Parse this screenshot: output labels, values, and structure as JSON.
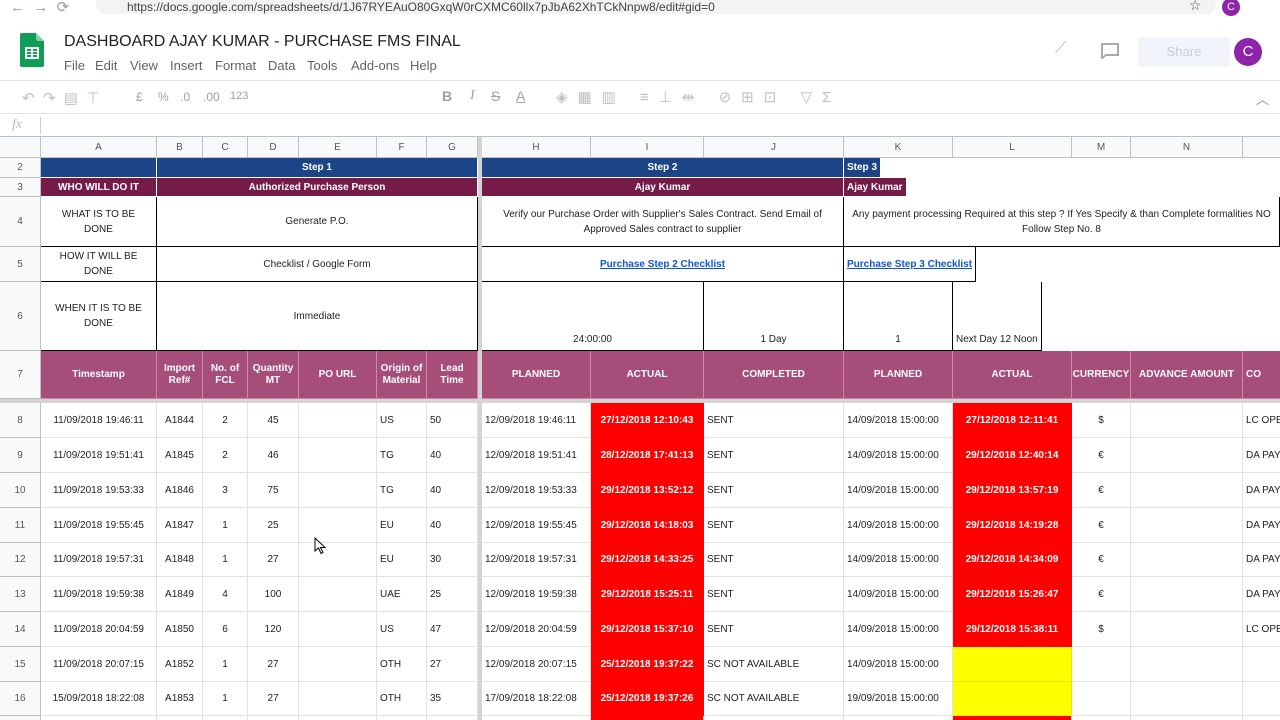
{
  "browser": {
    "url": "https://docs.google.com/spreadsheets/d/1J67RYEAuO80GxqW0rCXMC60llx7pJbA62XhTCkNnpw8/edit#gid=0",
    "avatar": "C"
  },
  "app": {
    "title": "DASHBOARD AJAY KUMAR - PURCHASE FMS FINAL",
    "menu": [
      "File",
      "Edit",
      "View",
      "Insert",
      "Format",
      "Data",
      "Tools",
      "Add-ons",
      "Help"
    ],
    "share": "Share",
    "avatar": "C",
    "toolbar": [
      "£",
      "%",
      ".0",
      ".00",
      "123",
      "B",
      "I",
      "S",
      "A"
    ],
    "fx": "fx"
  },
  "sheet": {
    "column_letters": [
      "A",
      "B",
      "C",
      "D",
      "E",
      "F",
      "G",
      "H",
      "I",
      "J",
      "K",
      "L",
      "M",
      "N"
    ],
    "row_numbers": [
      "2",
      "3",
      "4",
      "5",
      "6",
      "7",
      "8",
      "9",
      "10",
      "11",
      "12",
      "13",
      "14",
      "15",
      "16"
    ],
    "step_row": [
      "Step 1",
      "Step 2",
      "Step 3"
    ],
    "who_row": [
      "WHO WILL DO IT",
      "Authorized Purchase Person",
      "Ajay Kumar",
      "Ajay Kumar"
    ],
    "what_row": [
      "WHAT IS TO BE DONE",
      "Generate P.O.",
      "Verify our Purchase Order with Supplier's Sales Contract. Send Email of Approved Sales contract to supplier",
      "Any payment processing Required at this step ? If Yes Specify & than Complete formalities NO Follow Step No. 8"
    ],
    "how_row": [
      "HOW IT WILL BE DONE",
      "Checklist / Google Form",
      "Purchase Step 2 Checklist",
      "Purchase Step 3 Checklist"
    ],
    "when_row": [
      "WHEN IT IS TO BE DONE",
      "Immediate",
      "24:00:00",
      "1 Day",
      "1",
      "Next Day 12 Noon"
    ],
    "field_row": [
      "Timestamp",
      "Import Ref#",
      "No. of FCL",
      "Quantity MT",
      "PO URL",
      "Origin of Material",
      "Lead Time",
      "PLANNED",
      "ACTUAL",
      "COMPLETED",
      "PLANNED",
      "ACTUAL",
      "CURRENCY",
      "ADVANCE AMOUNT",
      "CO"
    ],
    "data_rows": [
      [
        "11/09/2018 19:46:11",
        "A1844",
        "2",
        "45",
        null,
        "US",
        "50",
        "12/09/2018 19:46:11",
        "27/12/2018 12:10:43",
        "SENT",
        "14/09/2018 15:00:00",
        "27/12/2018 12:11:41",
        "$",
        null,
        "LC OPE"
      ],
      [
        "11/09/2018 19:51:41",
        "A1845",
        "2",
        "46",
        null,
        "TG",
        "40",
        "12/09/2018 19:51:41",
        "28/12/2018 17:41:13",
        "SENT",
        "14/09/2018 15:00:00",
        "29/12/2018 12:40:14",
        "€",
        null,
        "DA PAY"
      ],
      [
        "11/09/2018 19:53:33",
        "A1846",
        "3",
        "75",
        null,
        "TG",
        "40",
        "12/09/2018 19:53:33",
        "29/12/2018 13:52:12",
        "SENT",
        "14/09/2018 15:00:00",
        "29/12/2018 13:57:19",
        "€",
        null,
        "DA PAY"
      ],
      [
        "11/09/2018 19:55:45",
        "A1847",
        "1",
        "25",
        null,
        "EU",
        "40",
        "12/09/2018 19:55:45",
        "29/12/2018 14:18:03",
        "SENT",
        "14/09/2018 15:00:00",
        "29/12/2018 14:19:28",
        "€",
        null,
        "DA PAY"
      ],
      [
        "11/09/2018 19:57:31",
        "A1848",
        "1",
        "27",
        null,
        "EU",
        "30",
        "12/09/2018 19:57:31",
        "29/12/2018 14:33:25",
        "SENT",
        "14/09/2018 15:00:00",
        "29/12/2018 14:34:09",
        "€",
        null,
        "DA PAY"
      ],
      [
        "11/09/2018 19:59:38",
        "A1849",
        "4",
        "100",
        null,
        "UAE",
        "25",
        "12/09/2018 19:59:38",
        "29/12/2018 15:25:11",
        "SENT",
        "14/09/2018 15:00:00",
        "29/12/2018 15:26:47",
        "€",
        null,
        "DA PAY"
      ],
      [
        "11/09/2018 20:04:59",
        "A1850",
        "6",
        "120",
        null,
        "US",
        "47",
        "12/09/2018 20:04:59",
        "29/12/2018 15:37:10",
        "SENT",
        "14/09/2018 15:00:00",
        "29/12/2018 15:38:11",
        "$",
        null,
        "LC OPE"
      ],
      [
        "11/09/2018 20:07:15",
        "A1852",
        "1",
        "27",
        null,
        "OTH",
        "27",
        "12/09/2018 20:07:15",
        "25/12/2018 19:37:22",
        "SC NOT AVAILABLE",
        "14/09/2018 15:00:00",
        null,
        null,
        null,
        null
      ],
      [
        "15/09/2018 18:22:08",
        "A1853",
        "1",
        "27",
        null,
        "OTH",
        "35",
        "17/09/2018 18:22:08",
        "25/12/2018 19:37:26",
        "SC NOT AVAILABLE",
        "19/09/2018 15:00:00",
        null,
        null,
        null,
        null
      ]
    ]
  }
}
